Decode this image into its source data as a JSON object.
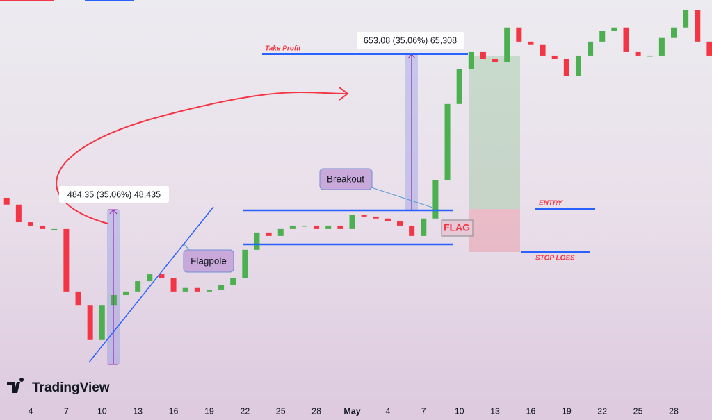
{
  "chart_data": {
    "type": "candlestick",
    "categories": [
      null,
      null,
      null,
      "4",
      null,
      null,
      "7",
      null,
      null,
      "10",
      null,
      null,
      "13",
      null,
      null,
      "16",
      null,
      null,
      "19",
      null,
      null,
      "22",
      null,
      null,
      "25",
      null,
      null,
      "28",
      null,
      null,
      "May",
      null,
      null,
      "4",
      null,
      null,
      "7",
      null,
      null,
      "10",
      null,
      null,
      "13",
      null,
      null,
      "16",
      null,
      null,
      "19",
      null,
      null,
      "22",
      null,
      null,
      "25",
      null,
      null,
      "28",
      null,
      null,
      null
    ],
    "values": [
      1907,
      1882,
      1819,
      1807,
      1795,
      1795,
      1590,
      1547,
      1447,
      1547,
      1579,
      1590,
      1622,
      1644,
      1633,
      1590,
      1601,
      1590,
      1594,
      1611,
      1633,
      1724,
      1783,
      1771,
      1795,
      1807,
      1807,
      1795,
      1807,
      1795,
      1844,
      1839,
      1832,
      1824,
      1807,
      1771,
      1832,
      1973,
      2288,
      2448,
      2531,
      2497,
      2481,
      2654,
      2583,
      2566,
      2514,
      2497,
      2415,
      2514,
      2583,
      2636,
      2654,
      2531,
      2514,
      2514,
      2601,
      2654,
      2745,
      2583,
      2514
    ],
    "up_color": "#4caf50",
    "down_color": "#f23645",
    "ylim": [
      1290,
      2800
    ],
    "log_scale": true,
    "annotations": {
      "flagpole_measure": "484.35 (35.06%) 48,435",
      "target_measure": "653.08 (35.06%) 65,308",
      "take_profit": "Take Profit",
      "breakout": "Breakout",
      "flagpole": "Flagpole",
      "flag": "FLAG",
      "entry": "ENTRY",
      "stop_loss": "STOP LOSS"
    },
    "watermark": "TradingView"
  }
}
